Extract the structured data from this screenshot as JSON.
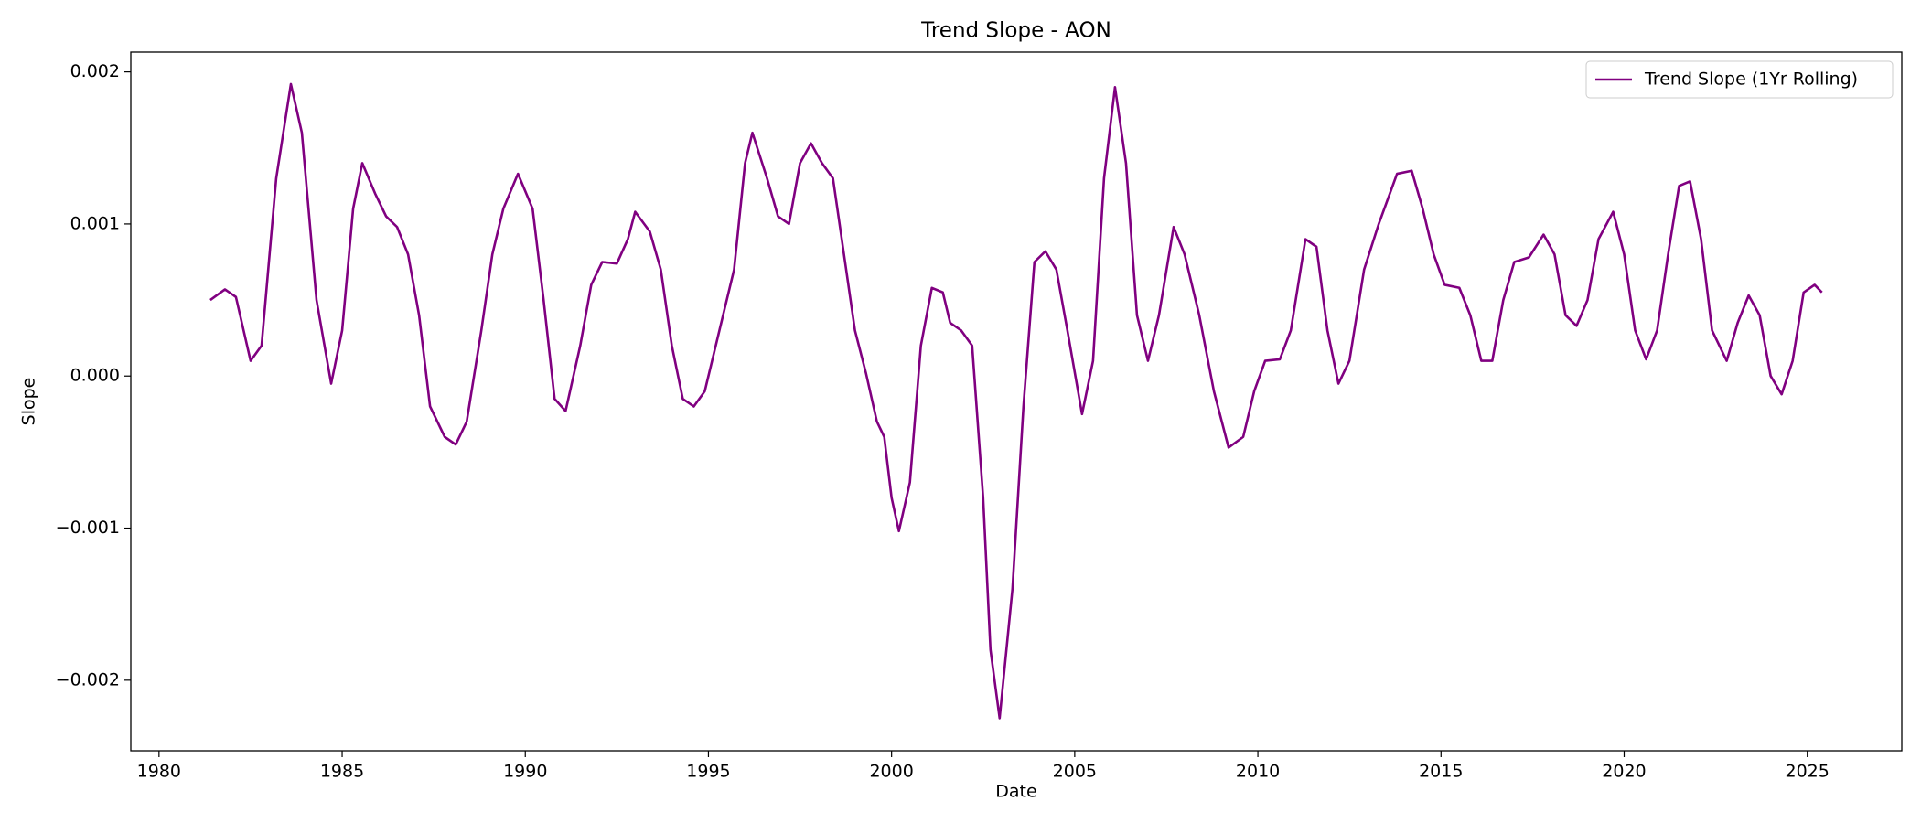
{
  "chart_data": {
    "type": "line",
    "title": "Trend Slope - AON",
    "xlabel": "Date",
    "ylabel": "Slope",
    "x": [
      1981.4,
      1981.8,
      1982.1,
      1982.5,
      1982.8,
      1983.2,
      1983.6,
      1983.9,
      1984.3,
      1984.7,
      1985.0,
      1985.3,
      1985.55,
      1985.9,
      1986.2,
      1986.5,
      1986.8,
      1987.1,
      1987.4,
      1987.8,
      1988.1,
      1988.4,
      1988.8,
      1989.1,
      1989.4,
      1989.8,
      1990.2,
      1990.5,
      1990.8,
      1991.1,
      1991.5,
      1991.8,
      1992.1,
      1992.5,
      1992.8,
      1993.0,
      1993.4,
      1993.7,
      1994.0,
      1994.3,
      1994.6,
      1994.9,
      1995.3,
      1995.7,
      1996.0,
      1996.2,
      1996.6,
      1996.9,
      1997.2,
      1997.5,
      1997.8,
      1998.1,
      1998.4,
      1998.7,
      1999.0,
      1999.3,
      1999.6,
      1999.8,
      2000.0,
      2000.2,
      2000.5,
      2000.8,
      2001.1,
      2001.4,
      2001.6,
      2001.9,
      2002.2,
      2002.5,
      2002.7,
      2002.95,
      2003.3,
      2003.6,
      2003.9,
      2004.2,
      2004.5,
      2004.8,
      2005.2,
      2005.5,
      2005.8,
      2006.1,
      2006.4,
      2006.7,
      2007.0,
      2007.3,
      2007.7,
      2008.0,
      2008.4,
      2008.8,
      2009.2,
      2009.6,
      2009.9,
      2010.2,
      2010.6,
      2010.9,
      2011.3,
      2011.6,
      2011.9,
      2012.2,
      2012.5,
      2012.9,
      2013.3,
      2013.8,
      2014.2,
      2014.5,
      2014.8,
      2015.1,
      2015.5,
      2015.8,
      2016.1,
      2016.4,
      2016.7,
      2017.0,
      2017.4,
      2017.8,
      2018.1,
      2018.4,
      2018.7,
      2019.0,
      2019.3,
      2019.7,
      2020.0,
      2020.3,
      2020.6,
      2020.9,
      2021.2,
      2021.5,
      2021.8,
      2022.1,
      2022.4,
      2022.8,
      2023.1,
      2023.4,
      2023.7,
      2024.0,
      2024.3,
      2024.6,
      2024.9,
      2025.2,
      2025.4
    ],
    "series": [
      {
        "name": "Trend Slope (1Yr Rolling)",
        "color": "#800080",
        "values": [
          0.0005,
          0.00057,
          0.00052,
          0.0001,
          0.0002,
          0.0013,
          0.00192,
          0.0016,
          0.0005,
          -5e-05,
          0.0003,
          0.0011,
          0.0014,
          0.0012,
          0.00105,
          0.00098,
          0.0008,
          0.0004,
          -0.0002,
          -0.0004,
          -0.00045,
          -0.0003,
          0.0003,
          0.0008,
          0.0011,
          0.00133,
          0.0011,
          0.0005,
          -0.00015,
          -0.00023,
          0.0002,
          0.0006,
          0.00075,
          0.00074,
          0.0009,
          0.00108,
          0.00095,
          0.0007,
          0.0002,
          -0.00015,
          -0.0002,
          -0.0001,
          0.0003,
          0.0007,
          0.0014,
          0.0016,
          0.0013,
          0.00105,
          0.001,
          0.0014,
          0.00153,
          0.0014,
          0.0013,
          0.0008,
          0.0003,
          2e-05,
          -0.0003,
          -0.0004,
          -0.0008,
          -0.00102,
          -0.0007,
          0.0002,
          0.00058,
          0.00055,
          0.00035,
          0.0003,
          0.0002,
          -0.0008,
          -0.0018,
          -0.00225,
          -0.0014,
          -0.0002,
          0.00075,
          0.00082,
          0.0007,
          0.0003,
          -0.00025,
          0.0001,
          0.0013,
          0.0019,
          0.0014,
          0.0004,
          0.0001,
          0.0004,
          0.00098,
          0.0008,
          0.0004,
          -0.0001,
          -0.00047,
          -0.0004,
          -0.0001,
          0.0001,
          0.00011,
          0.0003,
          0.0009,
          0.00085,
          0.0003,
          -5e-05,
          0.0001,
          0.0007,
          0.001,
          0.00133,
          0.00135,
          0.0011,
          0.0008,
          0.0006,
          0.00058,
          0.0004,
          0.0001,
          0.0001,
          0.0005,
          0.00075,
          0.00078,
          0.00093,
          0.0008,
          0.0004,
          0.00033,
          0.0005,
          0.0009,
          0.00108,
          0.0008,
          0.0003,
          0.00011,
          0.0003,
          0.0008,
          0.00125,
          0.00128,
          0.0009,
          0.0003,
          0.0001,
          0.00035,
          0.00053,
          0.0004,
          0.0,
          -0.00012,
          0.0001,
          0.00055,
          0.0006,
          0.00055
        ]
      }
    ],
    "xlim": [
      1979.23,
      2027.58
    ],
    "xticks": [
      1980,
      1985,
      1990,
      1995,
      2000,
      2005,
      2010,
      2015,
      2020,
      2025
    ],
    "ylim": [
      -0.002464,
      0.00213
    ],
    "yticks": [
      {
        "value": -0.002,
        "label": "−0.002"
      },
      {
        "value": -0.001,
        "label": "−0.001"
      },
      {
        "value": 0,
        "label": "0.000"
      },
      0.001,
      0.002
    ],
    "grid": false,
    "legend": "upper right"
  }
}
